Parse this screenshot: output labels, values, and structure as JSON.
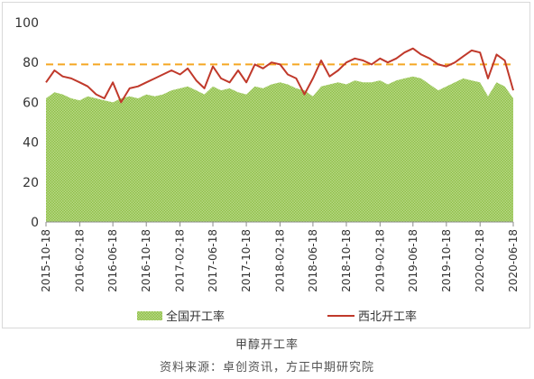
{
  "chart_data": {
    "type": "area",
    "caption": "甲醇开工率",
    "source": "资料来源：卓创资讯，方正中期研究院",
    "ylim": [
      0,
      100
    ],
    "yticks": [
      0,
      20,
      40,
      60,
      80,
      100
    ],
    "x_ticks": [
      "2015-10-18",
      "2016-02-18",
      "2016-06-18",
      "2016-10-18",
      "2017-02-18",
      "2017-06-18",
      "2017-10-18",
      "2018-02-18",
      "2018-06-18",
      "2018-10-18",
      "2019-02-18",
      "2019-06-18",
      "2019-10-18",
      "2020-02-18",
      "2020-06-18"
    ],
    "reference_line": {
      "value": 79,
      "color": "#f5a623",
      "style": "dashed"
    },
    "legend_position": "bottom",
    "series": [
      {
        "name": "全国开工率",
        "kind": "area",
        "color": "#92c050",
        "pattern": "dotted",
        "x": [
          "2015-10-18",
          "2015-11-18",
          "2015-12-18",
          "2016-01-18",
          "2016-02-18",
          "2016-03-18",
          "2016-04-18",
          "2016-05-18",
          "2016-06-18",
          "2016-07-18",
          "2016-08-18",
          "2016-09-18",
          "2016-10-18",
          "2016-11-18",
          "2016-12-18",
          "2017-01-18",
          "2017-02-18",
          "2017-03-18",
          "2017-04-18",
          "2017-05-18",
          "2017-06-18",
          "2017-07-18",
          "2017-08-18",
          "2017-09-18",
          "2017-10-18",
          "2017-11-18",
          "2017-12-18",
          "2018-01-18",
          "2018-02-18",
          "2018-03-18",
          "2018-04-18",
          "2018-05-18",
          "2018-06-18",
          "2018-07-18",
          "2018-08-18",
          "2018-09-18",
          "2018-10-18",
          "2018-11-18",
          "2018-12-18",
          "2019-01-18",
          "2019-02-18",
          "2019-03-18",
          "2019-04-18",
          "2019-05-18",
          "2019-06-18",
          "2019-07-18",
          "2019-08-18",
          "2019-09-18",
          "2019-10-18",
          "2019-11-18",
          "2019-12-18",
          "2020-01-18",
          "2020-02-18",
          "2020-03-18",
          "2020-04-18",
          "2020-05-18",
          "2020-06-18"
        ],
        "values": [
          62,
          65,
          64,
          62,
          61,
          63,
          62,
          61,
          60,
          62,
          63,
          62,
          64,
          63,
          64,
          66,
          67,
          68,
          66,
          64,
          68,
          66,
          67,
          65,
          64,
          68,
          67,
          69,
          70,
          69,
          67,
          66,
          63,
          68,
          69,
          70,
          69,
          71,
          70,
          70,
          71,
          69,
          71,
          72,
          73,
          72,
          69,
          66,
          68,
          70,
          72,
          71,
          70,
          63,
          70,
          68,
          62
        ]
      },
      {
        "name": "西北开工率",
        "kind": "line",
        "color": "#c0392b",
        "x": [
          "2015-10-18",
          "2015-11-18",
          "2015-12-18",
          "2016-01-18",
          "2016-02-18",
          "2016-03-18",
          "2016-04-18",
          "2016-05-18",
          "2016-06-18",
          "2016-07-18",
          "2016-08-18",
          "2016-09-18",
          "2016-10-18",
          "2016-11-18",
          "2016-12-18",
          "2017-01-18",
          "2017-02-18",
          "2017-03-18",
          "2017-04-18",
          "2017-05-18",
          "2017-06-18",
          "2017-07-18",
          "2017-08-18",
          "2017-09-18",
          "2017-10-18",
          "2017-11-18",
          "2017-12-18",
          "2018-01-18",
          "2018-02-18",
          "2018-03-18",
          "2018-04-18",
          "2018-05-18",
          "2018-06-18",
          "2018-07-18",
          "2018-08-18",
          "2018-09-18",
          "2018-10-18",
          "2018-11-18",
          "2018-12-18",
          "2019-01-18",
          "2019-02-18",
          "2019-03-18",
          "2019-04-18",
          "2019-05-18",
          "2019-06-18",
          "2019-07-18",
          "2019-08-18",
          "2019-09-18",
          "2019-10-18",
          "2019-11-18",
          "2019-12-18",
          "2020-01-18",
          "2020-02-18",
          "2020-03-18",
          "2020-04-18",
          "2020-05-18",
          "2020-06-18"
        ],
        "values": [
          70,
          76,
          73,
          72,
          70,
          68,
          64,
          62,
          70,
          60,
          67,
          68,
          70,
          72,
          74,
          76,
          74,
          77,
          71,
          67,
          78,
          72,
          70,
          76,
          70,
          79,
          77,
          80,
          79,
          74,
          72,
          64,
          72,
          81,
          73,
          76,
          80,
          82,
          81,
          79,
          82,
          80,
          82,
          85,
          87,
          84,
          82,
          79,
          78,
          80,
          83,
          86,
          85,
          72,
          84,
          81,
          66
        ]
      }
    ]
  }
}
